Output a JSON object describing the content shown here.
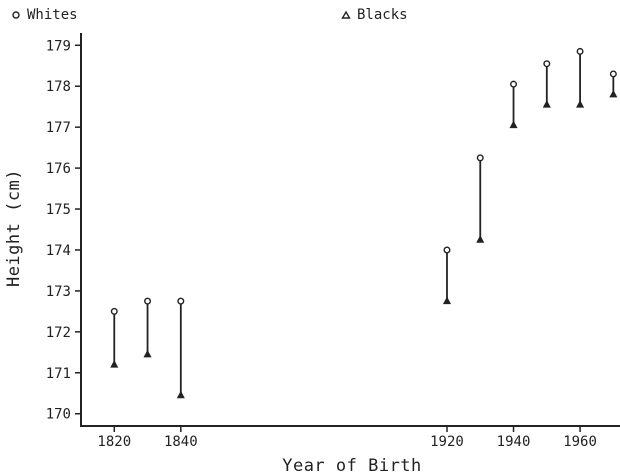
{
  "chart_data": {
    "type": "scatter",
    "title": "",
    "xlabel": "Year of Birth",
    "ylabel": "Height (cm)",
    "xlim": [
      1810,
      1972
    ],
    "ylim": [
      169.7,
      179.3
    ],
    "xticks": [
      1820,
      1840,
      1920,
      1940,
      1960
    ],
    "yticks": [
      170,
      171,
      172,
      173,
      174,
      175,
      176,
      177,
      178,
      179
    ],
    "grid": false,
    "legend_position": "top",
    "series": [
      {
        "name": "Whites",
        "marker": "circle",
        "points": [
          {
            "x": 1820,
            "y": 172.5
          },
          {
            "x": 1830,
            "y": 172.75
          },
          {
            "x": 1840,
            "y": 172.75
          },
          {
            "x": 1920,
            "y": 174.0
          },
          {
            "x": 1930,
            "y": 176.25
          },
          {
            "x": 1940,
            "y": 178.05
          },
          {
            "x": 1950,
            "y": 178.55
          },
          {
            "x": 1960,
            "y": 178.85
          },
          {
            "x": 1970,
            "y": 178.3
          }
        ]
      },
      {
        "name": "Blacks",
        "marker": "triangle",
        "points": [
          {
            "x": 1820,
            "y": 171.2
          },
          {
            "x": 1830,
            "y": 171.45
          },
          {
            "x": 1840,
            "y": 170.45
          },
          {
            "x": 1920,
            "y": 172.75
          },
          {
            "x": 1930,
            "y": 174.25
          },
          {
            "x": 1940,
            "y": 177.05
          },
          {
            "x": 1950,
            "y": 177.55
          },
          {
            "x": 1960,
            "y": 177.55
          },
          {
            "x": 1970,
            "y": 177.8
          }
        ]
      }
    ]
  }
}
